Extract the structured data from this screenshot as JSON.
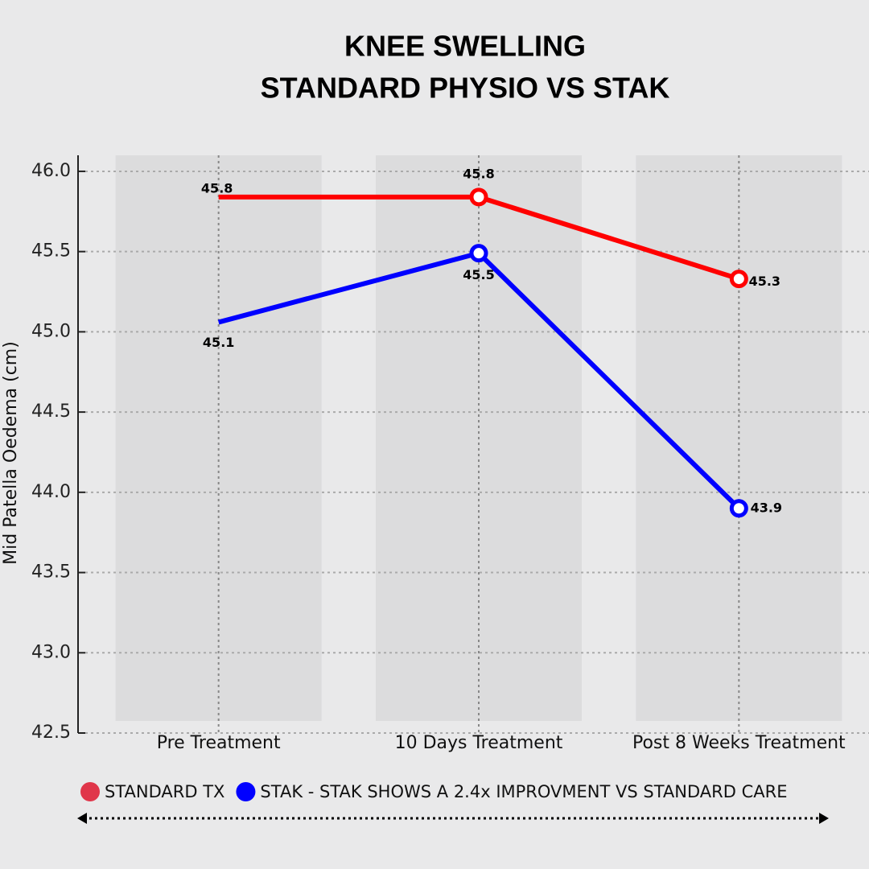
{
  "chart_data": {
    "type": "line",
    "title": [
      "KNEE SWELLING",
      "STANDARD PHYSIO VS STAK"
    ],
    "y_label": "Mid Patella Oedema (cm)",
    "categories": [
      "Pre Treatment",
      "10 Days Treatment",
      "Post 8 Weeks Treatment"
    ],
    "series": [
      {
        "name": "STANDARD TX",
        "color": "#ff0000",
        "legend_color": "#e0364a",
        "values": [
          45.84,
          45.84,
          45.33
        ],
        "value_labels": [
          "45.8",
          "45.8",
          "45.3"
        ]
      },
      {
        "name": "STAK - STAK SHOWS A 2.4x IMPROVMENT VS STANDARD CARE",
        "color": "#0000ff",
        "legend_color": "#0000ff",
        "values": [
          45.06,
          45.49,
          43.9
        ],
        "value_labels": [
          "45.1",
          "45.5",
          "43.9"
        ]
      }
    ],
    "ylim": [
      42.5,
      46.1
    ],
    "yticks": [
      {
        "value": 42.5,
        "label": "42.5"
      },
      {
        "value": 43,
        "label": "43.0"
      },
      43.5,
      {
        "value": 44,
        "label": "44.0"
      },
      44.5,
      {
        "value": 45,
        "label": "45.0"
      },
      45.5,
      {
        "value": 46,
        "label": "46.0"
      }
    ],
    "grid": true
  }
}
